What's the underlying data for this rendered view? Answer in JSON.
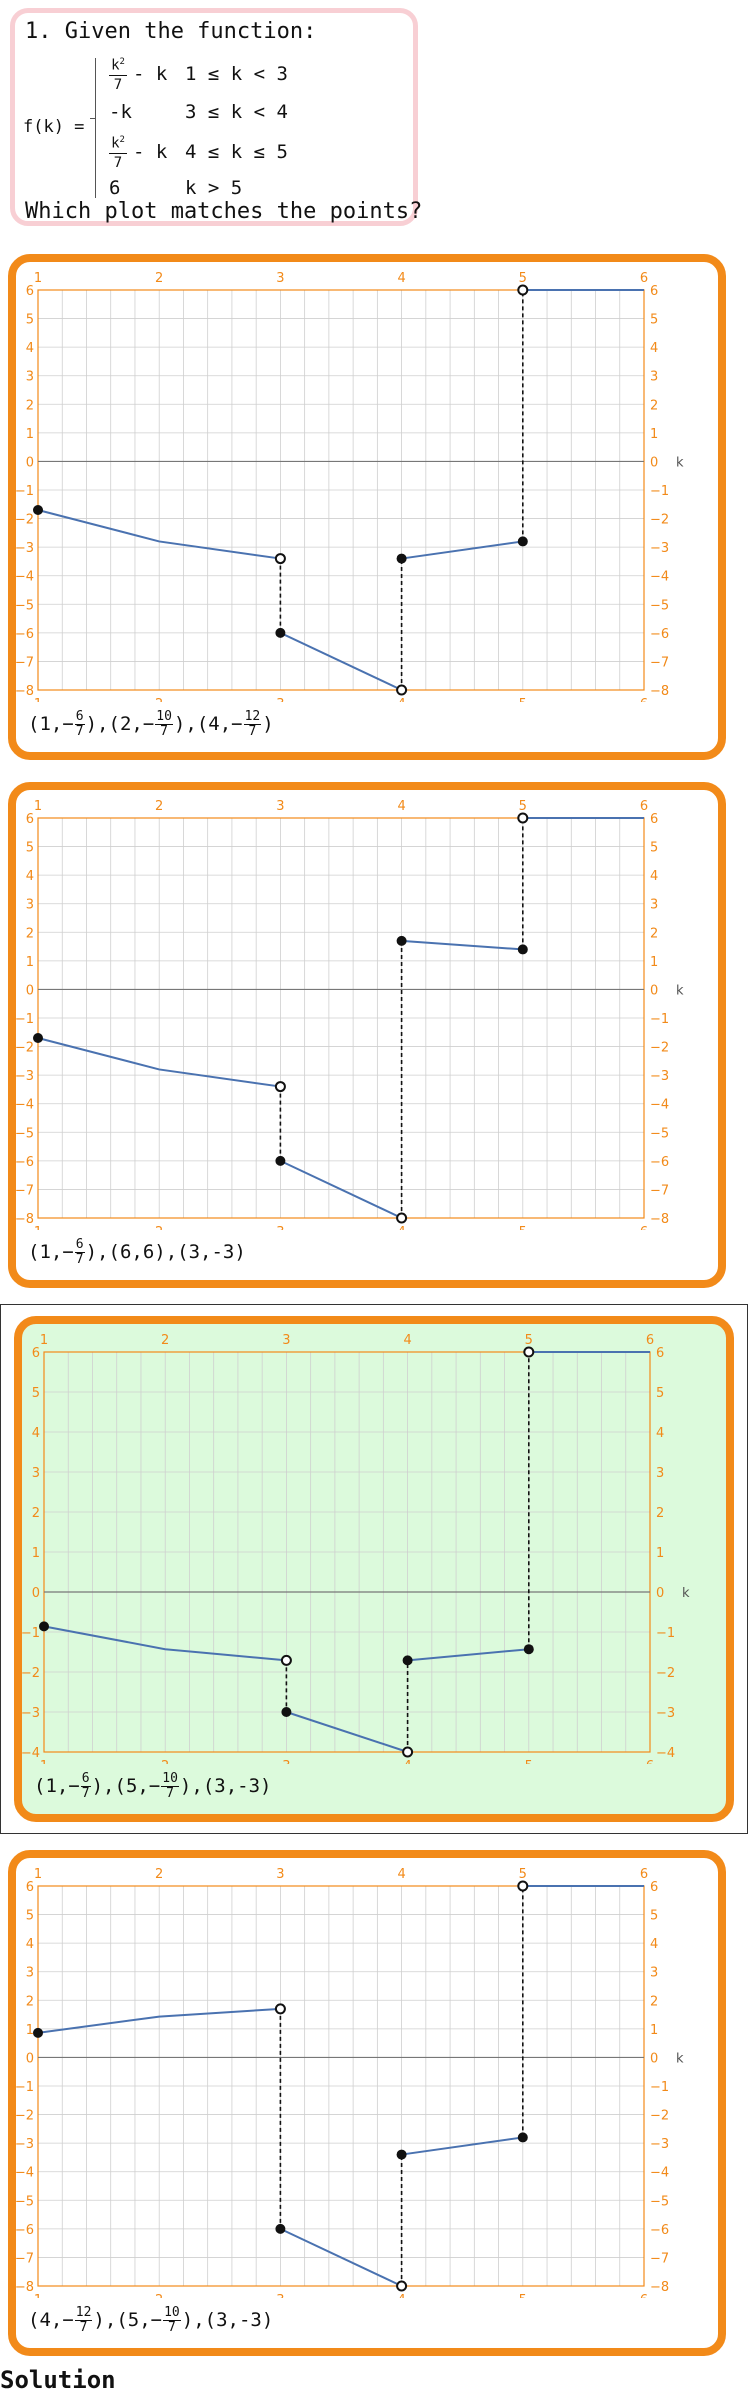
{
  "question": {
    "title": "1. Given the function:",
    "fk_label": "f(k) =",
    "pieces": [
      {
        "expr_num": "k2",
        "expr_den": "7",
        "expr_tail": "- k",
        "cond": "1 ≤ k < 3"
      },
      {
        "expr": "-k",
        "cond": "3 ≤ k < 4"
      },
      {
        "expr_num": "k2",
        "expr_den": "7",
        "expr_tail": "- k",
        "cond": "4 ≤ k ≤ 5"
      },
      {
        "expr": "6",
        "cond": "k > 5"
      }
    ],
    "prompt": "Which plot matches the points?"
  },
  "axis_label": "k",
  "colors": {
    "accent": "#f28a19",
    "curve": "#4a72b0",
    "correct_bg": "#dcfadc",
    "question_border": "#f8cfd4"
  },
  "chart_data": [
    {
      "type": "line",
      "xlim": [
        1,
        6
      ],
      "ylim": [
        -8,
        6
      ],
      "xticks": [
        1,
        2,
        3,
        4,
        5,
        6
      ],
      "yticks": [
        -8,
        -7,
        -6,
        -5,
        -4,
        -3,
        -2,
        -1,
        0,
        1,
        2,
        3,
        4,
        5,
        6
      ],
      "segments": [
        {
          "points": [
            [
              1,
              -1.7
            ],
            [
              2,
              -2.8
            ],
            [
              3,
              -3.4
            ]
          ]
        },
        {
          "points": [
            [
              3,
              -6
            ],
            [
              4,
              -8
            ]
          ]
        },
        {
          "points": [
            [
              4,
              -3.4
            ],
            [
              5,
              -2.8
            ]
          ]
        },
        {
          "points": [
            [
              5,
              6
            ],
            [
              6,
              6
            ]
          ]
        }
      ],
      "jumps": [
        [
          3,
          -3.4,
          -6
        ],
        [
          4,
          -8,
          -3.4
        ],
        [
          5,
          -2.8,
          6
        ]
      ],
      "filled": [
        [
          1,
          -1.7
        ],
        [
          3,
          -6
        ],
        [
          4,
          -3.4
        ],
        [
          5,
          -2.8
        ]
      ],
      "open": [
        [
          3,
          -3.4
        ],
        [
          4,
          -8
        ],
        [
          5,
          6
        ]
      ],
      "caption": [
        {
          "a": "1",
          "n": "6",
          "d": "7"
        },
        {
          "a": "2",
          "n": "10",
          "d": "7"
        },
        {
          "a": "4",
          "n": "12",
          "d": "7"
        }
      ]
    },
    {
      "type": "line",
      "xlim": [
        1,
        6
      ],
      "ylim": [
        -8,
        6
      ],
      "xticks": [
        1,
        2,
        3,
        4,
        5,
        6
      ],
      "yticks": [
        -8,
        -7,
        -6,
        -5,
        -4,
        -3,
        -2,
        -1,
        0,
        1,
        2,
        3,
        4,
        5,
        6
      ],
      "segments": [
        {
          "points": [
            [
              1,
              -1.7
            ],
            [
              2,
              -2.8
            ],
            [
              3,
              -3.4
            ]
          ]
        },
        {
          "points": [
            [
              3,
              -6
            ],
            [
              4,
              -8
            ]
          ]
        },
        {
          "points": [
            [
              4,
              1.7
            ],
            [
              5,
              1.4
            ]
          ]
        },
        {
          "points": [
            [
              5,
              6
            ],
            [
              6,
              6
            ]
          ]
        }
      ],
      "jumps": [
        [
          3,
          -3.4,
          -6
        ],
        [
          4,
          -8,
          1.7
        ],
        [
          5,
          1.4,
          6
        ]
      ],
      "filled": [
        [
          1,
          -1.7
        ],
        [
          3,
          -6
        ],
        [
          4,
          1.7
        ],
        [
          5,
          1.4
        ]
      ],
      "open": [
        [
          3,
          -3.4
        ],
        [
          4,
          -8
        ],
        [
          5,
          6
        ]
      ],
      "caption": [
        {
          "a": "1",
          "n": "6",
          "d": "7"
        },
        {
          "a": "6",
          "v": "6"
        },
        {
          "a": "3",
          "v": "-3"
        }
      ]
    },
    {
      "type": "line",
      "xlim": [
        1,
        6
      ],
      "ylim": [
        -4,
        6
      ],
      "xticks": [
        1,
        2,
        3,
        4,
        5,
        6
      ],
      "yticks": [
        -4,
        -3,
        -2,
        -1,
        0,
        1,
        2,
        3,
        4,
        5,
        6
      ],
      "segments": [
        {
          "points": [
            [
              1,
              -0.86
            ],
            [
              2,
              -1.43
            ],
            [
              3,
              -1.71
            ]
          ]
        },
        {
          "points": [
            [
              3,
              -3
            ],
            [
              4,
              -4
            ]
          ]
        },
        {
          "points": [
            [
              4,
              -1.71
            ],
            [
              5,
              -1.43
            ]
          ]
        },
        {
          "points": [
            [
              5,
              6
            ],
            [
              6,
              6
            ]
          ]
        }
      ],
      "jumps": [
        [
          3,
          -1.71,
          -3
        ],
        [
          4,
          -4,
          -1.71
        ],
        [
          5,
          -1.43,
          6
        ]
      ],
      "filled": [
        [
          1,
          -0.86
        ],
        [
          3,
          -3
        ],
        [
          4,
          -1.71
        ],
        [
          5,
          -1.43
        ]
      ],
      "open": [
        [
          3,
          -1.71
        ],
        [
          4,
          -4
        ],
        [
          5,
          6
        ]
      ],
      "caption": [
        {
          "a": "1",
          "n": "6",
          "d": "7"
        },
        {
          "a": "5",
          "n": "10",
          "d": "7"
        },
        {
          "a": "3",
          "v": "-3"
        }
      ]
    },
    {
      "type": "line",
      "xlim": [
        1,
        6
      ],
      "ylim": [
        -8,
        6
      ],
      "xticks": [
        1,
        2,
        3,
        4,
        5,
        6
      ],
      "yticks": [
        -8,
        -7,
        -6,
        -5,
        -4,
        -3,
        -2,
        -1,
        0,
        1,
        2,
        3,
        4,
        5,
        6
      ],
      "segments": [
        {
          "points": [
            [
              1,
              0.86
            ],
            [
              2,
              1.43
            ],
            [
              3,
              1.7
            ]
          ]
        },
        {
          "points": [
            [
              3,
              -6
            ],
            [
              4,
              -8
            ]
          ]
        },
        {
          "points": [
            [
              4,
              -3.4
            ],
            [
              5,
              -2.8
            ]
          ]
        },
        {
          "points": [
            [
              5,
              6
            ],
            [
              6,
              6
            ]
          ]
        }
      ],
      "jumps": [
        [
          3,
          1.7,
          -6
        ],
        [
          4,
          -8,
          -3.4
        ],
        [
          5,
          -2.8,
          6
        ]
      ],
      "filled": [
        [
          1,
          0.86
        ],
        [
          3,
          -6
        ],
        [
          4,
          -3.4
        ],
        [
          5,
          -2.8
        ]
      ],
      "open": [
        [
          3,
          1.7
        ],
        [
          4,
          -8
        ],
        [
          5,
          6
        ]
      ],
      "caption": [
        {
          "a": "4",
          "n": "12",
          "d": "7"
        },
        {
          "a": "5",
          "n": "10",
          "d": "7"
        },
        {
          "a": "3",
          "v": "-3"
        }
      ]
    }
  ],
  "solution_label": "Solution"
}
